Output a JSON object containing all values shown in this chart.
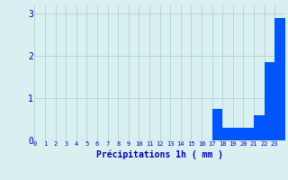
{
  "hours": [
    0,
    1,
    2,
    3,
    4,
    5,
    6,
    7,
    8,
    9,
    10,
    11,
    12,
    13,
    14,
    15,
    16,
    17,
    18,
    19,
    20,
    21,
    22,
    23
  ],
  "values": [
    0,
    0,
    0,
    0,
    0,
    0,
    0,
    0,
    0,
    0,
    0,
    0,
    0,
    0,
    0,
    0,
    0,
    0.75,
    0.3,
    0.3,
    0.3,
    0.6,
    1.85,
    2.9
  ],
  "bar_color": "#0055ff",
  "bg_color": "#d8f0f0",
  "grid_color": "#aacccc",
  "xlabel": "Précipitations 1h ( mm )",
  "xlabel_color": "#0000bb",
  "tick_color": "#0000bb",
  "ylim": [
    0,
    3.2
  ],
  "yticks": [
    0,
    1,
    2,
    3
  ],
  "figsize": [
    3.2,
    2.0
  ],
  "dpi": 100
}
